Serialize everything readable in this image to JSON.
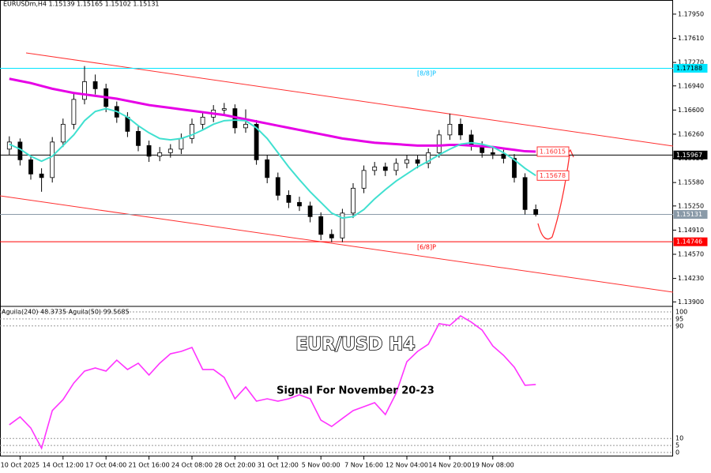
{
  "chart_data": [
    {
      "type": "candlestick",
      "title": "EURUSDm,H4  1.15139 1.15165 1.15102 1.15131",
      "categories": [
        null,
        "10 Oct 2025",
        null,
        null,
        null,
        "14 Oct 12:00",
        null,
        null,
        null,
        "17 Oct 04:00",
        null,
        null,
        null,
        "21 Oct 16:00",
        null,
        null,
        null,
        "24 Oct 08:00",
        null,
        null,
        null,
        "28 Oct 20:00",
        null,
        null,
        null,
        "31 Oct 12:00",
        null,
        null,
        null,
        "5 Nov 00:00",
        null,
        null,
        null,
        "7 Nov 16:00",
        null,
        null,
        null,
        "12 Nov 04:00",
        null,
        null,
        null,
        "14 Nov 20:00",
        null,
        null,
        null,
        "19 Nov 08:00",
        null,
        null,
        null,
        null
      ],
      "open": [
        1.1605,
        1.1615,
        1.159,
        1.157,
        1.1565,
        1.1615,
        1.164,
        1.1675,
        1.17,
        1.169,
        1.1665,
        1.165,
        1.163,
        1.161,
        1.1595,
        1.16,
        1.1605,
        1.162,
        1.164,
        1.165,
        1.166,
        1.1662,
        1.1635,
        1.164,
        1.159,
        1.1565,
        1.154,
        1.153,
        1.1525,
        1.151,
        1.1485,
        1.148,
        1.1515,
        1.155,
        1.1575,
        1.158,
        1.1575,
        1.1585,
        1.159,
        1.1585,
        1.16,
        1.1625,
        1.164,
        1.1625,
        1.161,
        1.16,
        1.1598,
        1.1592,
        1.1565,
        1.152
      ],
      "high": [
        1.1623,
        1.162,
        1.1596,
        1.1578,
        1.1622,
        1.1648,
        1.1684,
        1.1722,
        1.171,
        1.1697,
        1.1672,
        1.1657,
        1.1638,
        1.1617,
        1.1608,
        1.1612,
        1.1627,
        1.1648,
        1.1658,
        1.1667,
        1.167,
        1.1668,
        1.1661,
        1.1646,
        1.1597,
        1.1572,
        1.1547,
        1.1538,
        1.1531,
        1.1516,
        1.1492,
        1.1521,
        1.1557,
        1.1582,
        1.1587,
        1.1586,
        1.1592,
        1.1597,
        1.1596,
        1.1606,
        1.1632,
        1.1655,
        1.1648,
        1.1632,
        1.1616,
        1.1607,
        1.1604,
        1.1598,
        1.1571,
        1.1527
      ],
      "low": [
        1.1597,
        1.1582,
        1.1562,
        1.1545,
        1.1558,
        1.1608,
        1.1633,
        1.1668,
        1.1682,
        1.1657,
        1.1642,
        1.1622,
        1.1602,
        1.1587,
        1.1588,
        1.1593,
        1.1598,
        1.1613,
        1.1633,
        1.1643,
        1.1653,
        1.1627,
        1.1628,
        1.1583,
        1.1557,
        1.1533,
        1.1522,
        1.1518,
        1.1502,
        1.1477,
        1.1474,
        1.1474,
        1.1508,
        1.1543,
        1.1568,
        1.1567,
        1.1568,
        1.1578,
        1.1578,
        1.1578,
        1.1593,
        1.1618,
        1.1618,
        1.1603,
        1.1593,
        1.1591,
        1.1585,
        1.1558,
        1.1513,
        1.15102
      ],
      "close": [
        1.1615,
        1.159,
        1.157,
        1.1565,
        1.1615,
        1.164,
        1.1675,
        1.17,
        1.169,
        1.1665,
        1.165,
        1.163,
        1.161,
        1.1595,
        1.16,
        1.1605,
        1.162,
        1.164,
        1.165,
        1.166,
        1.1662,
        1.1635,
        1.164,
        1.159,
        1.1565,
        1.154,
        1.153,
        1.1525,
        1.151,
        1.1485,
        1.148,
        1.1515,
        1.155,
        1.1575,
        1.158,
        1.1575,
        1.1585,
        1.159,
        1.1585,
        1.16,
        1.1625,
        1.164,
        1.1625,
        1.161,
        1.16,
        1.1598,
        1.1592,
        1.1565,
        1.152,
        1.15131
      ],
      "lines": [
        {
          "color": "#e600e6",
          "values": [
            1.1704,
            1.1701,
            1.1698,
            1.1694,
            1.169,
            1.1687,
            1.1684,
            1.1682,
            1.168,
            1.1678,
            1.1676,
            1.1673,
            1.167,
            1.1667,
            1.1665,
            1.1663,
            1.1661,
            1.1659,
            1.1657,
            1.1655,
            1.1653,
            1.165,
            1.1647,
            1.1644,
            1.1641,
            1.1638,
            1.1635,
            1.1632,
            1.1629,
            1.1626,
            1.1623,
            1.162,
            1.1618,
            1.1616,
            1.1614,
            1.1613,
            1.1612,
            1.1611,
            1.161,
            1.161,
            1.161,
            1.1611,
            1.1611,
            1.161,
            1.1609,
            1.1608,
            1.1606,
            1.1604,
            1.1602,
            1.16015
          ]
        },
        {
          "color": "#40e0d0",
          "values": [
            1.1612,
            1.1605,
            1.1595,
            1.1588,
            1.1595,
            1.161,
            1.1625,
            1.1645,
            1.1658,
            1.1662,
            1.1658,
            1.165,
            1.1638,
            1.1628,
            1.162,
            1.1618,
            1.162,
            1.1625,
            1.1632,
            1.164,
            1.1645,
            1.1646,
            1.1645,
            1.1635,
            1.162,
            1.16,
            1.158,
            1.1562,
            1.1545,
            1.153,
            1.1515,
            1.1508,
            1.151,
            1.152,
            1.1535,
            1.1548,
            1.156,
            1.157,
            1.158,
            1.1588,
            1.1597,
            1.1605,
            1.1612,
            1.1614,
            1.1612,
            1.1608,
            1.16,
            1.159,
            1.1578,
            1.15678
          ]
        }
      ],
      "levels": [
        {
          "value": 1.17188,
          "color": "#00e5ff"
        },
        {
          "value": 1.15967,
          "color": "#000000"
        },
        {
          "value": 1.15131,
          "color": "#8a9aa8"
        },
        {
          "value": 1.14746,
          "color": "#ff0000"
        }
      ],
      "annotations": [
        "[8/8]P",
        "[6/8]P"
      ],
      "ylim": [
        1.1387,
        1.1806
      ],
      "yticks": [
        {
          "value": 1.1795,
          "label": "1.17950"
        },
        {
          "value": 1.1761,
          "label": "1.17610"
        },
        {
          "value": 1.1727,
          "label": "1.17270"
        },
        {
          "value": 1.1694,
          "label": "1.16940"
        },
        {
          "value": 1.166,
          "label": "1.16600"
        },
        {
          "value": 1.1626,
          "label": "1.16260"
        },
        {
          "value": 1.1592,
          "label": "1.15920"
        },
        {
          "value": 1.1558,
          "label": "1.15580"
        },
        {
          "value": 1.1525,
          "label": "1.15250"
        },
        {
          "value": 1.1491,
          "label": "1.14910"
        },
        {
          "value": 1.1457,
          "label": "1.14570"
        },
        {
          "value": 1.1423,
          "label": "1.14230"
        },
        {
          "value": 1.139,
          "label": "1.13900"
        }
      ]
    },
    {
      "type": "line",
      "title": "Aguila(240) 48.3735  Aguila(50) 99.5685",
      "color": "#ff33ff",
      "values": [
        19.7,
        25.3,
        17.4,
        3.0,
        29.8,
        37.6,
        49.4,
        57.9,
        60.1,
        57.9,
        65.7,
        59.0,
        63.5,
        55.1,
        63.5,
        70.2,
        71.9,
        74.7,
        59.0,
        59.0,
        53.4,
        38.2,
        46.6,
        36.5,
        38.2,
        36.5,
        38.2,
        41.0,
        38.2,
        23.0,
        18.5,
        24.2,
        29.8,
        32.6,
        35.4,
        27.0,
        42.1,
        64.6,
        71.9,
        77.0,
        91.6,
        90.4,
        97.2,
        92.7,
        87.1,
        75.8,
        69.1,
        60.7,
        47.8,
        48.3735
      ],
      "annotations": [
        "EUR/USD H4",
        "Signal For November 20-23"
      ],
      "ylim": [
        -2.8,
        102.8
      ],
      "yticks": [
        100,
        95,
        90,
        10,
        5,
        0
      ],
      "grid": true
    }
  ]
}
